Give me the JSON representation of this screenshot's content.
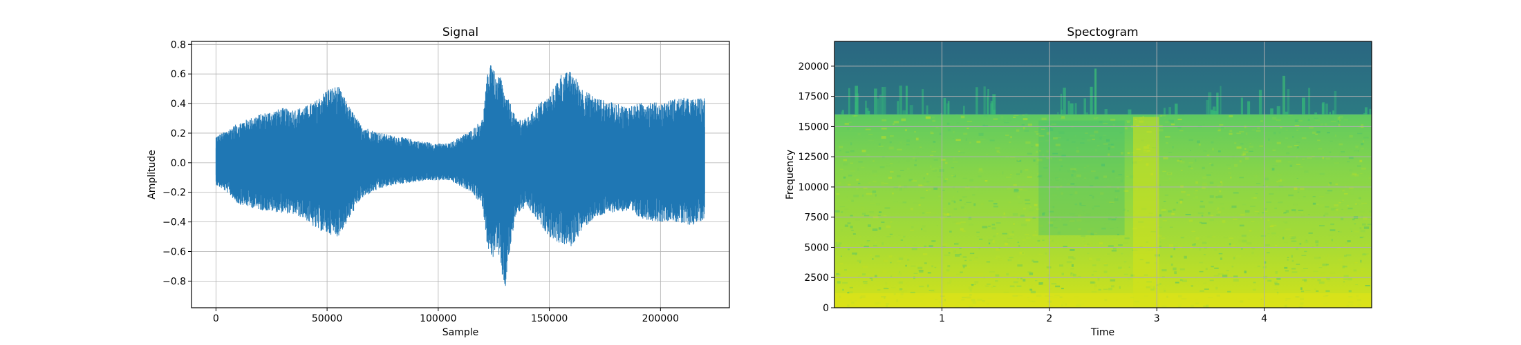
{
  "chart_data": [
    {
      "type": "line",
      "title": "Signal",
      "xlabel": "Sample",
      "ylabel": "Amplitude",
      "xlim": [
        -11000,
        231000
      ],
      "ylim": [
        -0.98,
        0.82
      ],
      "xticks": [
        0,
        50000,
        100000,
        150000,
        200000
      ],
      "xtick_labels": [
        "0",
        "50000",
        "100000",
        "150000",
        "200000"
      ],
      "yticks": [
        -0.8,
        -0.6,
        -0.4,
        -0.2,
        0.0,
        0.2,
        0.4,
        0.6,
        0.8
      ],
      "ytick_labels": [
        "−0.8",
        "−0.6",
        "−0.4",
        "−0.2",
        "0.0",
        "0.2",
        "0.4",
        "0.6",
        "0.8"
      ],
      "grid": true,
      "color": "#1f77b4",
      "series": [
        {
          "x": [
            0,
            5000,
            10000,
            15000,
            20000,
            25000,
            30000,
            35000,
            40000,
            45000,
            50000,
            55000,
            60000,
            65000,
            70000,
            75000,
            80000,
            85000,
            90000,
            95000,
            100000,
            105000,
            110000,
            115000,
            120000,
            122000,
            124000,
            126000,
            128000,
            130000,
            132000,
            135000,
            140000,
            145000,
            150000,
            155000,
            160000,
            165000,
            170000,
            175000,
            180000,
            185000,
            190000,
            195000,
            200000,
            205000,
            210000,
            215000,
            220000
          ],
          "upper": [
            0.18,
            0.22,
            0.27,
            0.3,
            0.33,
            0.35,
            0.37,
            0.36,
            0.38,
            0.42,
            0.5,
            0.52,
            0.38,
            0.26,
            0.22,
            0.2,
            0.18,
            0.17,
            0.15,
            0.14,
            0.13,
            0.13,
            0.18,
            0.22,
            0.3,
            0.58,
            0.73,
            0.55,
            0.6,
            0.45,
            0.42,
            0.3,
            0.3,
            0.4,
            0.45,
            0.6,
            0.62,
            0.5,
            0.45,
            0.42,
            0.4,
            0.38,
            0.4,
            0.42,
            0.4,
            0.43,
            0.44,
            0.43,
            0.44
          ],
          "lower": [
            -0.15,
            -0.2,
            -0.28,
            -0.3,
            -0.32,
            -0.33,
            -0.34,
            -0.35,
            -0.38,
            -0.45,
            -0.48,
            -0.5,
            -0.38,
            -0.25,
            -0.2,
            -0.17,
            -0.15,
            -0.14,
            -0.13,
            -0.12,
            -0.12,
            -0.12,
            -0.16,
            -0.2,
            -0.3,
            -0.55,
            -0.67,
            -0.58,
            -0.7,
            -0.88,
            -0.62,
            -0.35,
            -0.3,
            -0.4,
            -0.5,
            -0.55,
            -0.57,
            -0.45,
            -0.38,
            -0.35,
            -0.33,
            -0.33,
            -0.37,
            -0.39,
            -0.4,
            -0.39,
            -0.42,
            -0.42,
            -0.38
          ]
        }
      ]
    },
    {
      "type": "heatmap",
      "title": "Spectogram",
      "xlabel": "Time",
      "ylabel": "Frequency",
      "xlim": [
        0.0,
        5.0
      ],
      "ylim": [
        0,
        22050
      ],
      "xticks": [
        1,
        2,
        3,
        4
      ],
      "xtick_labels": [
        "1",
        "2",
        "3",
        "4"
      ],
      "yticks": [
        0,
        2500,
        5000,
        7500,
        10000,
        12500,
        15000,
        17500,
        20000
      ],
      "ytick_labels": [
        "0",
        "2500",
        "5000",
        "7500",
        "10000",
        "12500",
        "15000",
        "17500",
        "20000"
      ],
      "grid": true,
      "colormap": "viridis",
      "cutoff_frequency": 16000,
      "bright_band_time": [
        2.78,
        3.02
      ],
      "upper_band_color": "#2a6b84",
      "low_band_color": "#d2e21b",
      "mid_band_color": "#8fd14a"
    }
  ]
}
